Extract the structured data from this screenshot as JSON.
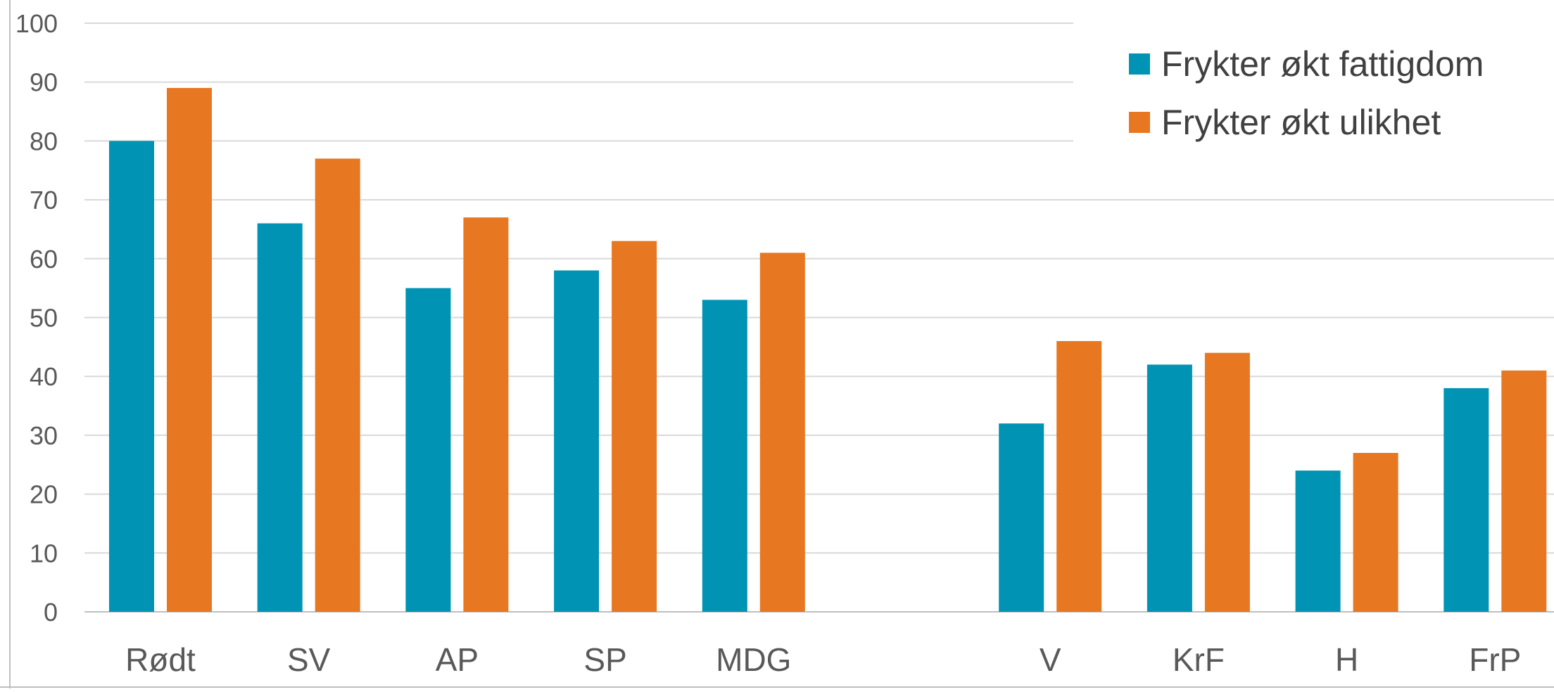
{
  "chart_data": {
    "type": "bar",
    "categories": [
      "Rødt",
      "SV",
      "AP",
      "SP",
      "MDG",
      "",
      "V",
      "KrF",
      "H",
      "FrP"
    ],
    "series": [
      {
        "name": "Frykter økt fattigdom",
        "values": [
          80,
          66,
          55,
          58,
          53,
          null,
          32,
          42,
          24,
          38
        ]
      },
      {
        "name": "Frykter økt ulikhet",
        "values": [
          89,
          77,
          67,
          63,
          61,
          null,
          46,
          44,
          27,
          41
        ]
      }
    ],
    "ylim": [
      0,
      100
    ],
    "yticks": [
      "0",
      "10",
      "20",
      "30",
      "40",
      "50",
      "60",
      "70",
      "80",
      "90",
      "100"
    ],
    "grid": true,
    "legend_position": "top-right",
    "colors": [
      "#0093b3",
      "#e87722"
    ]
  }
}
